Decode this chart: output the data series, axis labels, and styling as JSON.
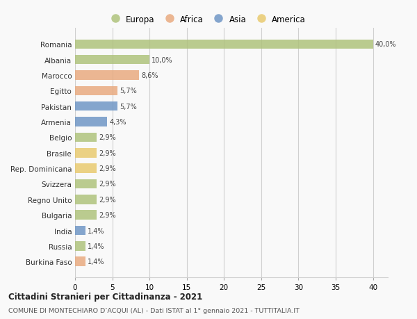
{
  "countries": [
    "Romania",
    "Albania",
    "Marocco",
    "Egitto",
    "Pakistan",
    "Armenia",
    "Belgio",
    "Brasile",
    "Rep. Dominicana",
    "Svizzera",
    "Regno Unito",
    "Bulgaria",
    "India",
    "Russia",
    "Burkina Faso"
  ],
  "values": [
    40.0,
    10.0,
    8.6,
    5.7,
    5.7,
    4.3,
    2.9,
    2.9,
    2.9,
    2.9,
    2.9,
    2.9,
    1.4,
    1.4,
    1.4
  ],
  "labels": [
    "40,0%",
    "10,0%",
    "8,6%",
    "5,7%",
    "5,7%",
    "4,3%",
    "2,9%",
    "2,9%",
    "2,9%",
    "2,9%",
    "2,9%",
    "2,9%",
    "1,4%",
    "1,4%",
    "1,4%"
  ],
  "colors": [
    "#adc178",
    "#adc178",
    "#e8a87c",
    "#e8a87c",
    "#6b93c4",
    "#6b93c4",
    "#adc178",
    "#e8c96b",
    "#e8c96b",
    "#adc178",
    "#adc178",
    "#adc178",
    "#6b93c4",
    "#adc178",
    "#e8a87c"
  ],
  "legend_labels": [
    "Europa",
    "Africa",
    "Asia",
    "America"
  ],
  "legend_colors": [
    "#adc178",
    "#e8a87c",
    "#6b93c4",
    "#e8c96b"
  ],
  "title1": "Cittadini Stranieri per Cittadinanza - 2021",
  "title2": "COMUNE DI MONTECHIARO D’ACQUI (AL) - Dati ISTAT al 1° gennaio 2021 - TUTTITALIA.IT",
  "xlim": [
    0,
    42
  ],
  "xticks": [
    0,
    5,
    10,
    15,
    20,
    25,
    30,
    35,
    40
  ],
  "bg_color": "#f9f9f9",
  "bar_height": 0.6,
  "grid_color": "#d0d0d0"
}
